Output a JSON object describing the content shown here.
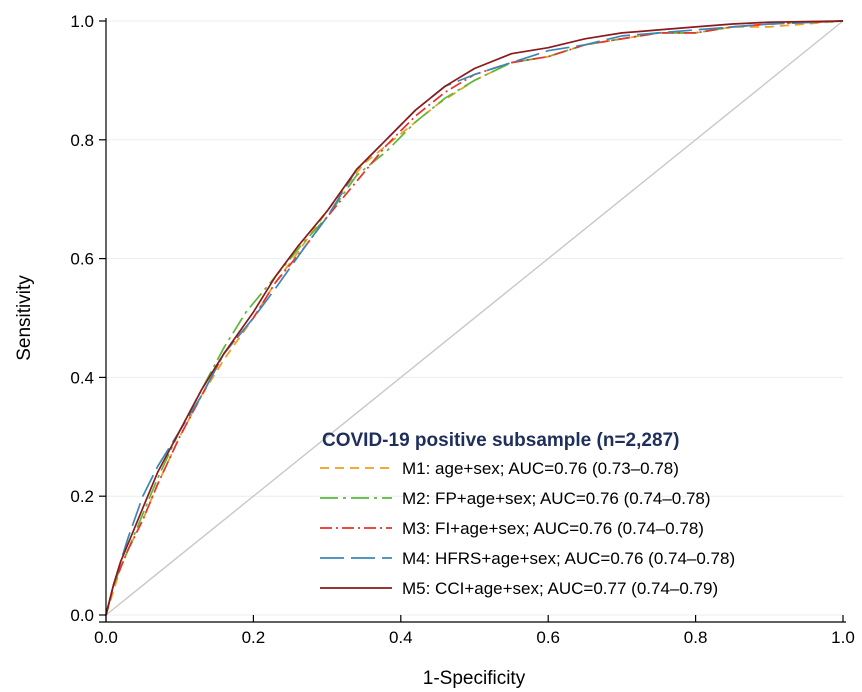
{
  "chart_data": {
    "type": "line",
    "title": "",
    "xlabel": "1-Specificity",
    "ylabel": "Sensitivity",
    "xlim": [
      0,
      1
    ],
    "ylim": [
      0,
      1
    ],
    "xticks": [
      "0.0",
      "0.2",
      "0.4",
      "0.6",
      "0.8",
      "1.0"
    ],
    "yticks": [
      "0.0",
      "0.2",
      "0.4",
      "0.6",
      "0.8",
      "1.0"
    ],
    "grid": true,
    "legend": {
      "title": "COVID-19 positive subsample (n=2,287)",
      "placement": "bottom-right"
    },
    "reference_line": {
      "x": [
        0,
        1
      ],
      "y": [
        0,
        1
      ],
      "color": "#c8c8c8"
    },
    "series": [
      {
        "name": "M1: age+sex; AUC=0.76 (0.73–0.78)",
        "color": "#f39c1e",
        "dash": "dashed",
        "points": [
          [
            0,
            0
          ],
          [
            0.01,
            0.04
          ],
          [
            0.02,
            0.08
          ],
          [
            0.03,
            0.11
          ],
          [
            0.05,
            0.16
          ],
          [
            0.07,
            0.22
          ],
          [
            0.1,
            0.3
          ],
          [
            0.13,
            0.37
          ],
          [
            0.16,
            0.43
          ],
          [
            0.2,
            0.5
          ],
          [
            0.23,
            0.56
          ],
          [
            0.26,
            0.61
          ],
          [
            0.3,
            0.68
          ],
          [
            0.35,
            0.76
          ],
          [
            0.4,
            0.81
          ],
          [
            0.45,
            0.86
          ],
          [
            0.5,
            0.9
          ],
          [
            0.55,
            0.93
          ],
          [
            0.6,
            0.94
          ],
          [
            0.65,
            0.96
          ],
          [
            0.7,
            0.97
          ],
          [
            0.75,
            0.98
          ],
          [
            0.8,
            0.98
          ],
          [
            0.85,
            0.99
          ],
          [
            0.9,
            0.99
          ],
          [
            1,
            1
          ]
        ]
      },
      {
        "name": "M2: FP+age+sex; AUC=0.76 (0.74–0.78)",
        "color": "#5cb83a",
        "dash": "dashdot-long",
        "points": [
          [
            0,
            0
          ],
          [
            0.01,
            0.05
          ],
          [
            0.02,
            0.08
          ],
          [
            0.03,
            0.11
          ],
          [
            0.05,
            0.17
          ],
          [
            0.07,
            0.23
          ],
          [
            0.1,
            0.31
          ],
          [
            0.13,
            0.38
          ],
          [
            0.16,
            0.45
          ],
          [
            0.19,
            0.51
          ],
          [
            0.23,
            0.57
          ],
          [
            0.27,
            0.63
          ],
          [
            0.3,
            0.67
          ],
          [
            0.34,
            0.74
          ],
          [
            0.38,
            0.78
          ],
          [
            0.42,
            0.83
          ],
          [
            0.46,
            0.87
          ],
          [
            0.5,
            0.9
          ],
          [
            0.55,
            0.93
          ],
          [
            0.6,
            0.94
          ],
          [
            0.65,
            0.96
          ],
          [
            0.7,
            0.97
          ],
          [
            0.75,
            0.98
          ],
          [
            0.8,
            0.98
          ],
          [
            0.85,
            0.99
          ],
          [
            0.9,
            0.995
          ],
          [
            1,
            1
          ]
        ]
      },
      {
        "name": "M3: FI+age+sex; AUC=0.76 (0.74–0.78)",
        "color": "#e8322b",
        "dash": "dashdot",
        "points": [
          [
            0,
            0
          ],
          [
            0.01,
            0.05
          ],
          [
            0.02,
            0.08
          ],
          [
            0.03,
            0.11
          ],
          [
            0.05,
            0.16
          ],
          [
            0.07,
            0.22
          ],
          [
            0.1,
            0.3
          ],
          [
            0.13,
            0.37
          ],
          [
            0.16,
            0.44
          ],
          [
            0.2,
            0.5
          ],
          [
            0.23,
            0.56
          ],
          [
            0.27,
            0.62
          ],
          [
            0.3,
            0.67
          ],
          [
            0.34,
            0.73
          ],
          [
            0.38,
            0.79
          ],
          [
            0.42,
            0.84
          ],
          [
            0.46,
            0.88
          ],
          [
            0.5,
            0.91
          ],
          [
            0.55,
            0.93
          ],
          [
            0.6,
            0.94
          ],
          [
            0.65,
            0.96
          ],
          [
            0.7,
            0.97
          ],
          [
            0.75,
            0.98
          ],
          [
            0.8,
            0.98
          ],
          [
            0.85,
            0.99
          ],
          [
            0.9,
            0.995
          ],
          [
            1,
            1
          ]
        ]
      },
      {
        "name": "M4: HFRS+age+sex; AUC=0.76 (0.74–0.78)",
        "color": "#3b87b8",
        "dash": "longdash",
        "points": [
          [
            0,
            0
          ],
          [
            0.01,
            0.05
          ],
          [
            0.02,
            0.09
          ],
          [
            0.03,
            0.13
          ],
          [
            0.05,
            0.2
          ],
          [
            0.07,
            0.25
          ],
          [
            0.1,
            0.31
          ],
          [
            0.13,
            0.37
          ],
          [
            0.16,
            0.44
          ],
          [
            0.2,
            0.5
          ],
          [
            0.23,
            0.55
          ],
          [
            0.27,
            0.62
          ],
          [
            0.3,
            0.67
          ],
          [
            0.34,
            0.75
          ],
          [
            0.38,
            0.8
          ],
          [
            0.42,
            0.85
          ],
          [
            0.46,
            0.89
          ],
          [
            0.5,
            0.91
          ],
          [
            0.55,
            0.93
          ],
          [
            0.6,
            0.95
          ],
          [
            0.65,
            0.96
          ],
          [
            0.7,
            0.975
          ],
          [
            0.75,
            0.98
          ],
          [
            0.8,
            0.985
          ],
          [
            0.85,
            0.99
          ],
          [
            0.9,
            0.995
          ],
          [
            1,
            1
          ]
        ]
      },
      {
        "name": "M5: CCI+age+sex; AUC=0.77 (0.74–0.79)",
        "color": "#8b1a1a",
        "dash": "solid",
        "points": [
          [
            0,
            0
          ],
          [
            0.01,
            0.05
          ],
          [
            0.02,
            0.09
          ],
          [
            0.03,
            0.12
          ],
          [
            0.05,
            0.18
          ],
          [
            0.07,
            0.24
          ],
          [
            0.1,
            0.31
          ],
          [
            0.13,
            0.38
          ],
          [
            0.16,
            0.44
          ],
          [
            0.2,
            0.51
          ],
          [
            0.23,
            0.57
          ],
          [
            0.26,
            0.62
          ],
          [
            0.3,
            0.68
          ],
          [
            0.34,
            0.75
          ],
          [
            0.38,
            0.8
          ],
          [
            0.42,
            0.85
          ],
          [
            0.46,
            0.89
          ],
          [
            0.5,
            0.92
          ],
          [
            0.55,
            0.945
          ],
          [
            0.6,
            0.955
          ],
          [
            0.65,
            0.97
          ],
          [
            0.7,
            0.98
          ],
          [
            0.75,
            0.985
          ],
          [
            0.8,
            0.99
          ],
          [
            0.85,
            0.995
          ],
          [
            0.9,
            0.998
          ],
          [
            1,
            1
          ]
        ]
      }
    ]
  }
}
